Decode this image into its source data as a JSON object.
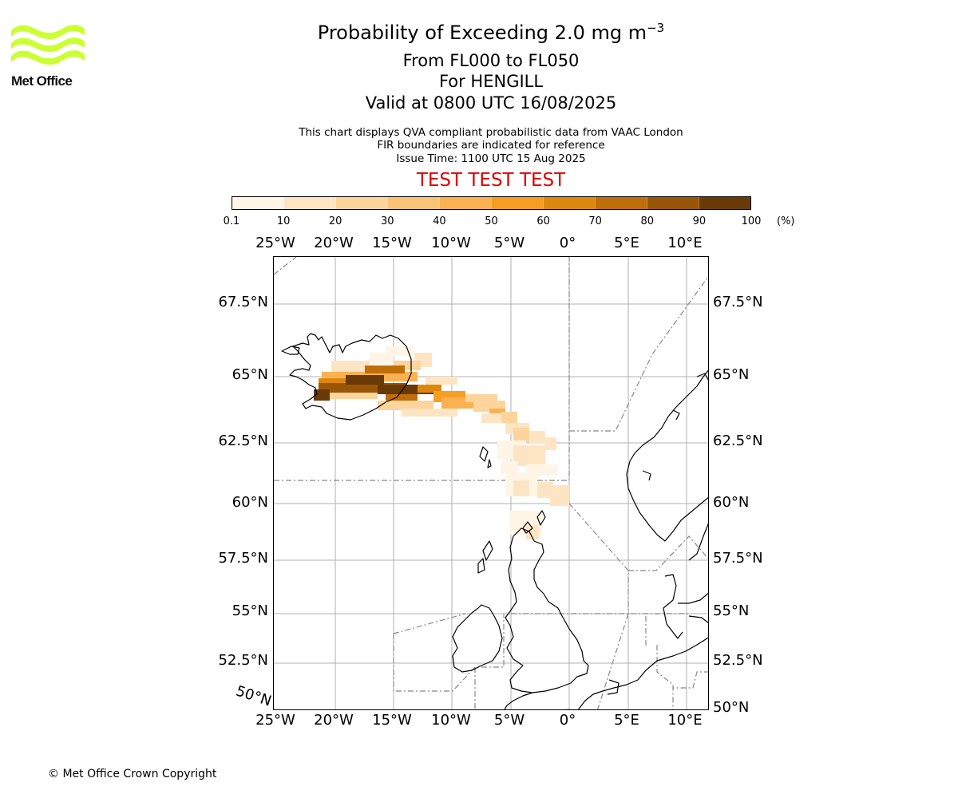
{
  "logo": {
    "text": "Met Office",
    "color": "#ccff33"
  },
  "header": {
    "title_main": "Probability of Exceeding 2.0 mg m",
    "title_exp": "−3",
    "levels": "From FL000 to FL050",
    "location": "For HENGILL",
    "valid": "Valid at 0800 UTC 16/08/2025",
    "note1": "This chart displays QVA compliant probabilistic data from VAAC London",
    "note2": "FIR boundaries are indicated for reference",
    "issue": "Issue Time: 1100 UTC 15 Aug 2025",
    "test_banner": "TEST TEST TEST"
  },
  "colorbar": {
    "ticks": [
      "0.1",
      "10",
      "20",
      "30",
      "40",
      "50",
      "60",
      "70",
      "80",
      "90",
      "100"
    ],
    "unit": "(%)",
    "colors": [
      "#fff5e6",
      "#fde5c4",
      "#fcd49c",
      "#fbc375",
      "#fab152",
      "#f69e22",
      "#dd870f",
      "#bf6e0a",
      "#9a5608",
      "#6a3a06"
    ]
  },
  "map": {
    "lon_labels": [
      "25°W",
      "20°W",
      "15°W",
      "10°W",
      "5°W",
      "0°",
      "5°E",
      "10°E"
    ],
    "lat_labels_left": [
      "67.5°N",
      "65°N",
      "62.5°N",
      "60°N",
      "57.5°N",
      "55°N",
      "52.5°N"
    ],
    "lat_corner_label": "50°N",
    "lat_labels_right": [
      "67.5°N",
      "65°N",
      "62.5°N",
      "60°N",
      "57.5°N",
      "55°N",
      "52.5°N",
      "50°N"
    ],
    "grid_color": "#b0b0b0",
    "coast_color": "#000000",
    "fir_color": "#888888"
  },
  "footer": {
    "copyright": "© Met Office Crown Copyright"
  }
}
